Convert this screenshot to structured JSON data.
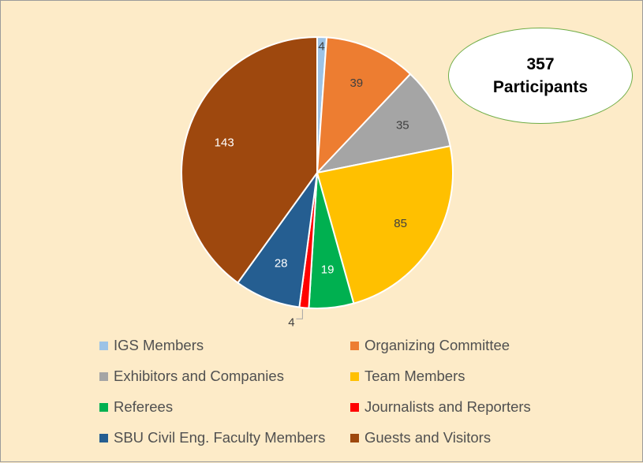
{
  "chart_data": {
    "type": "pie",
    "categories": [
      "IGS Members",
      "Organizing Committee",
      "Exhibitors and Companies",
      "Team Members",
      "Referees",
      "Journalists and Reporters",
      "SBU Civil Eng. Faculty Members",
      "Guests and Visitors"
    ],
    "values": [
      4,
      39,
      35,
      85,
      19,
      4,
      28,
      143
    ],
    "data_labels": [
      "4",
      "39",
      "35",
      "85",
      "19",
      "4",
      "28",
      "143"
    ],
    "colors": [
      "#9DC3E6",
      "#ED7D31",
      "#A5A5A5",
      "#FFC000",
      "#00B050",
      "#FF0000",
      "#255E91",
      "#9E480E"
    ],
    "label_colors": [
      "#404040",
      "#404040",
      "#404040",
      "#404040",
      "#FFFFFF",
      "#404040",
      "#FFFFFF",
      "#FFFFFF"
    ],
    "start_angle": "12 o'clock, clockwise",
    "legend_position": "bottom",
    "background": "#FDEBC8"
  },
  "callout": {
    "number": "357",
    "label": "Participants"
  }
}
